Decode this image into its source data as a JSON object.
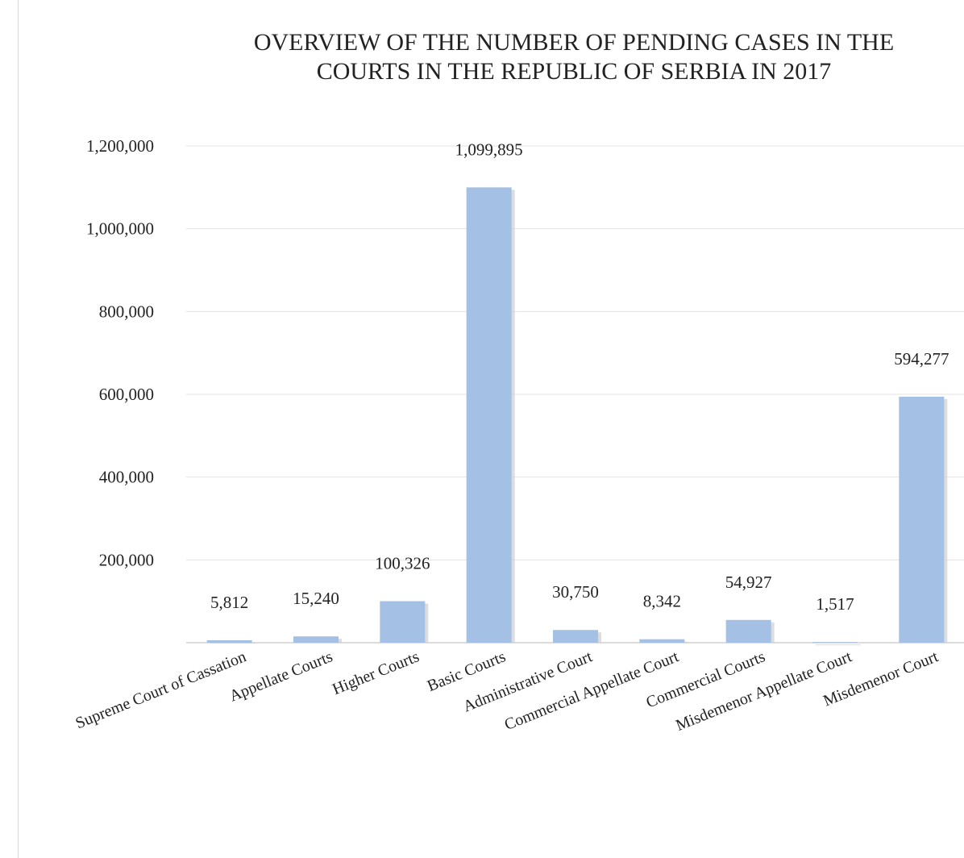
{
  "chart_data": {
    "type": "bar",
    "title": "OVERVIEW OF THE NUMBER OF PENDING CASES IN THE COURTS IN THE REPUBLIC OF SERBIA IN 2017",
    "title_lines": [
      "OVERVIEW OF THE NUMBER OF PENDING CASES IN THE",
      "COURTS IN THE REPUBLIC OF SERBIA IN 2017"
    ],
    "categories": [
      "Supreme Court of Cassation",
      "Appellate Courts",
      "Higher Courts",
      "Basic Courts",
      "Administrative Court",
      "Commercial Appellate Court",
      "Commercial Courts",
      "Misdemenor Appellate Court",
      "Misdemenor Court"
    ],
    "values": [
      5812,
      15240,
      100326,
      1099895,
      30750,
      8342,
      54927,
      1517,
      594277
    ],
    "value_labels": [
      "5,812",
      "15,240",
      "100,326",
      "1,099,895",
      "30,750",
      "8,342",
      "54,927",
      "1,517",
      "594,277"
    ],
    "xlabel": "",
    "ylabel": "",
    "ylim": [
      0,
      1200000
    ],
    "yticks": [
      200000,
      400000,
      600000,
      800000,
      1000000,
      1200000
    ],
    "ytick_labels": [
      "200,000",
      "400,000",
      "600,000",
      "800,000",
      "1,000,000",
      "1,200,000"
    ],
    "grid": true,
    "legend": "none",
    "bar_color": "#a4c0e4",
    "bar_shadow_color": "#cfcfcf",
    "grid_color": "#e3e3e3",
    "axis_color": "#d0d0d0"
  }
}
